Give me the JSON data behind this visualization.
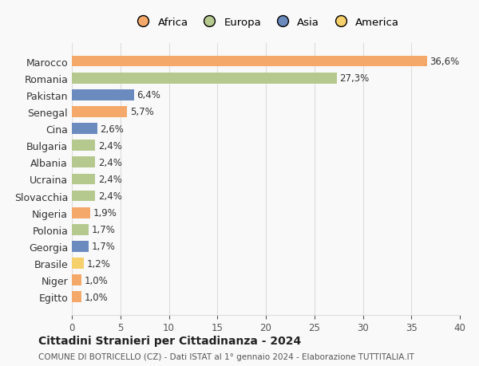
{
  "countries": [
    "Marocco",
    "Romania",
    "Pakistan",
    "Senegal",
    "Cina",
    "Bulgaria",
    "Albania",
    "Ucraina",
    "Slovacchia",
    "Nigeria",
    "Polonia",
    "Georgia",
    "Brasile",
    "Niger",
    "Egitto"
  ],
  "values": [
    36.6,
    27.3,
    6.4,
    5.7,
    2.6,
    2.4,
    2.4,
    2.4,
    2.4,
    1.9,
    1.7,
    1.7,
    1.2,
    1.0,
    1.0
  ],
  "labels": [
    "36,6%",
    "27,3%",
    "6,4%",
    "5,7%",
    "2,6%",
    "2,4%",
    "2,4%",
    "2,4%",
    "2,4%",
    "1,9%",
    "1,7%",
    "1,7%",
    "1,2%",
    "1,0%",
    "1,0%"
  ],
  "continents": [
    "Africa",
    "Europa",
    "Asia",
    "Africa",
    "Asia",
    "Europa",
    "Europa",
    "Europa",
    "Europa",
    "Africa",
    "Europa",
    "Asia",
    "America",
    "Africa",
    "Africa"
  ],
  "continent_colors": {
    "Africa": "#F4A96B",
    "Europa": "#B5C98E",
    "Asia": "#6B8BBF",
    "America": "#F5D06B"
  },
  "legend_order": [
    "Africa",
    "Europa",
    "Asia",
    "America"
  ],
  "xlim": [
    0,
    40
  ],
  "xticks": [
    0,
    5,
    10,
    15,
    20,
    25,
    30,
    35,
    40
  ],
  "title": "Cittadini Stranieri per Cittadinanza - 2024",
  "subtitle": "COMUNE DI BOTRICELLO (CZ) - Dati ISTAT al 1° gennaio 2024 - Elaborazione TUTTITALIA.IT",
  "bg_color": "#f9f9f9",
  "grid_color": "#dddddd"
}
